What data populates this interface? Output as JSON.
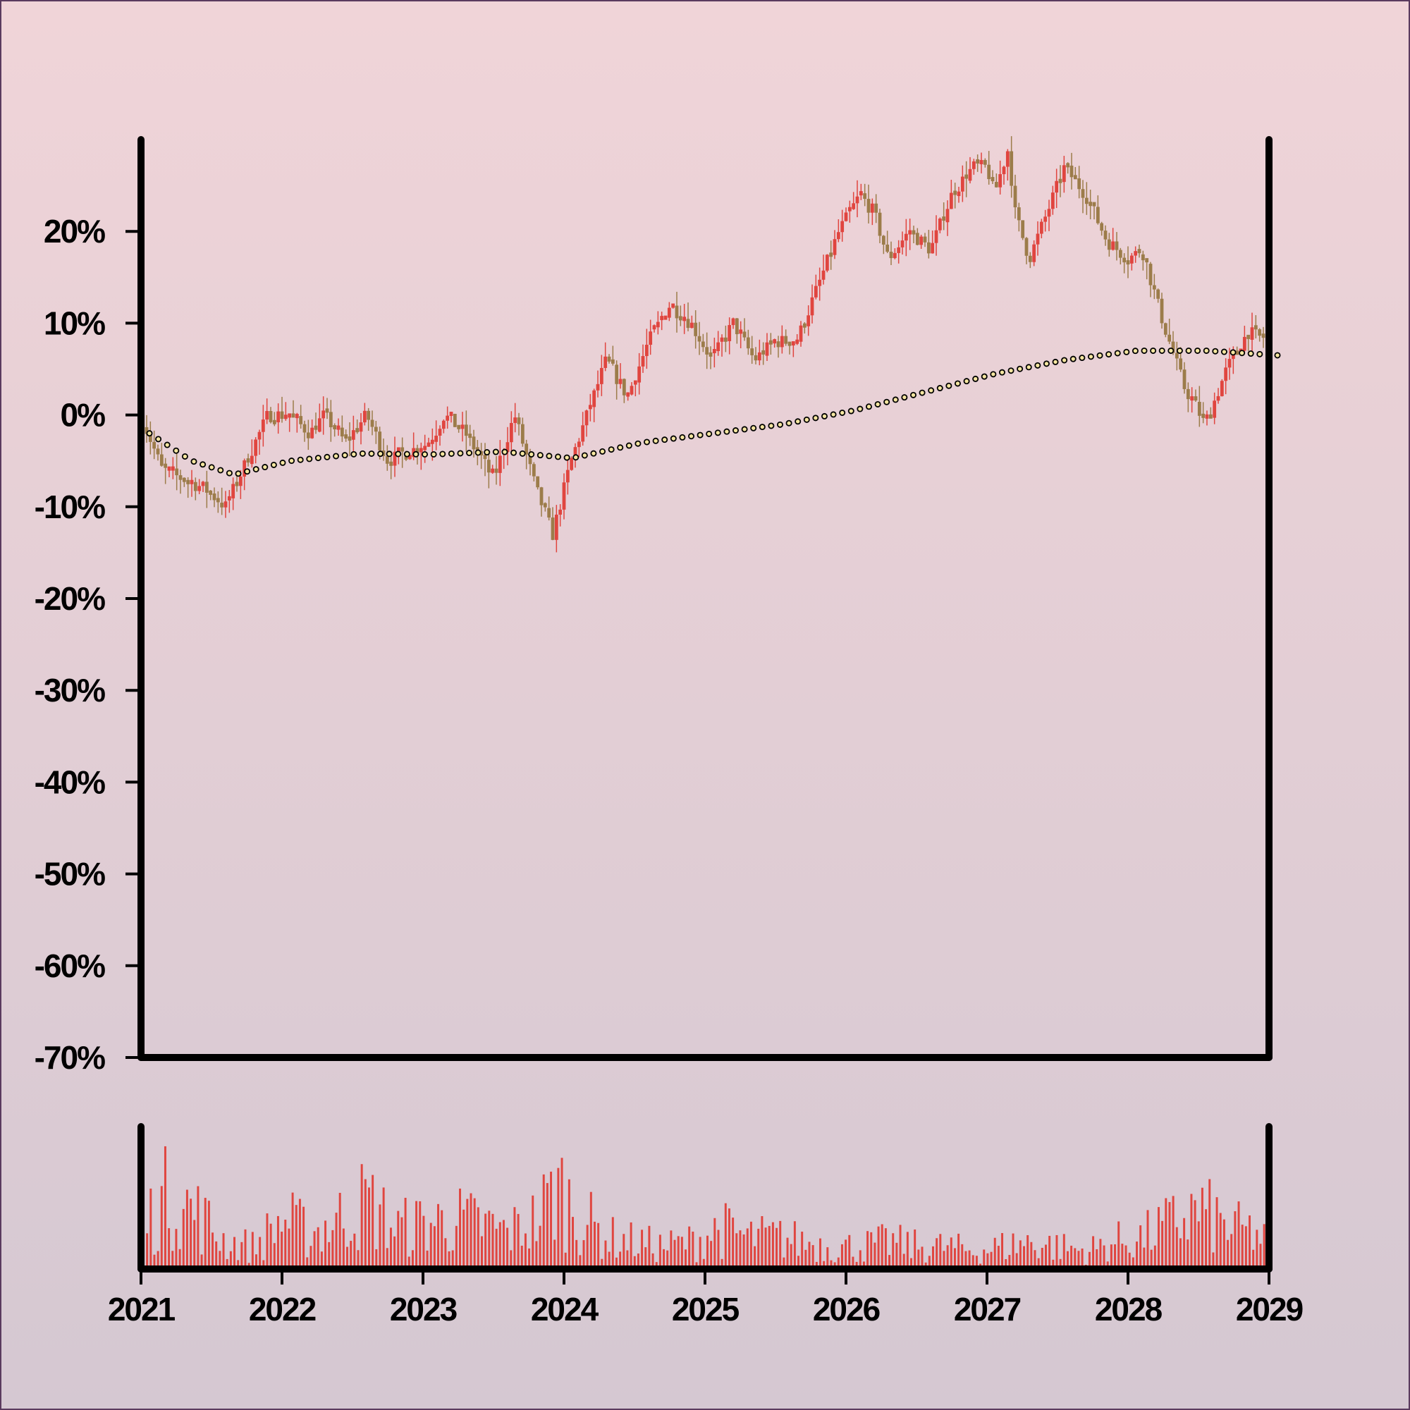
{
  "chart_data": {
    "type": "candlestick",
    "title": "",
    "xlabel": "",
    "ylabel": "",
    "ylim": [
      -70,
      30
    ],
    "xlim": [
      2021,
      2029
    ],
    "y_ticks": [
      20,
      10,
      0,
      -10,
      -20,
      -30,
      -40,
      -50,
      -60,
      -70
    ],
    "y_tick_labels": [
      "20%",
      "10%",
      "0%",
      "-10%",
      "-20%",
      "-30%",
      "-40%",
      "-50%",
      "-60%",
      "-70%"
    ],
    "x_ticks": [
      2021,
      2022,
      2023,
      2024,
      2025,
      2026,
      2027,
      2028,
      2029
    ],
    "x_tick_labels": [
      "2021",
      "2022",
      "2023",
      "2024",
      "2025",
      "2026",
      "2027",
      "2028",
      "2029"
    ],
    "grid": false,
    "colors": {
      "up": "#e0453f",
      "down": "#9c7c4a",
      "average": "#f5e6a0",
      "volume": "#e0453f",
      "axis": "#000000"
    },
    "close_path": [
      [
        2021.0,
        0
      ],
      [
        2021.15,
        -6
      ],
      [
        2021.3,
        -7
      ],
      [
        2021.45,
        -8
      ],
      [
        2021.6,
        -10
      ],
      [
        2021.75,
        -5
      ],
      [
        2021.9,
        0
      ],
      [
        2022.05,
        0
      ],
      [
        2022.2,
        -2
      ],
      [
        2022.3,
        0
      ],
      [
        2022.45,
        -3
      ],
      [
        2022.6,
        0
      ],
      [
        2022.75,
        -5
      ],
      [
        2022.9,
        -4
      ],
      [
        2023.05,
        -3
      ],
      [
        2023.15,
        0
      ],
      [
        2023.3,
        -2
      ],
      [
        2023.5,
        -7
      ],
      [
        2023.65,
        0
      ],
      [
        2023.8,
        -8
      ],
      [
        2023.92,
        -13
      ],
      [
        2024.05,
        -5
      ],
      [
        2024.3,
        6
      ],
      [
        2024.45,
        2
      ],
      [
        2024.6,
        8
      ],
      [
        2024.75,
        12
      ],
      [
        2024.9,
        10
      ],
      [
        2025.05,
        6
      ],
      [
        2025.2,
        10
      ],
      [
        2025.35,
        6
      ],
      [
        2025.5,
        8
      ],
      [
        2025.65,
        8
      ],
      [
        2025.8,
        14
      ],
      [
        2025.95,
        20
      ],
      [
        2026.1,
        24
      ],
      [
        2026.2,
        22
      ],
      [
        2026.3,
        17
      ],
      [
        2026.45,
        20
      ],
      [
        2026.6,
        18
      ],
      [
        2026.75,
        24
      ],
      [
        2026.9,
        27
      ],
      [
        2027.0,
        27
      ],
      [
        2027.05,
        24
      ],
      [
        2027.15,
        29
      ],
      [
        2027.2,
        22
      ],
      [
        2027.3,
        17
      ],
      [
        2027.45,
        23
      ],
      [
        2027.55,
        27
      ],
      [
        2027.7,
        24
      ],
      [
        2027.85,
        19
      ],
      [
        2028.0,
        17
      ],
      [
        2028.1,
        18
      ],
      [
        2028.25,
        10
      ],
      [
        2028.4,
        3
      ],
      [
        2028.55,
        -1
      ],
      [
        2028.7,
        5
      ],
      [
        2028.85,
        9
      ],
      [
        2029.0,
        8
      ]
    ],
    "average_path": [
      [
        2021.0,
        -2
      ],
      [
        2021.3,
        -5
      ],
      [
        2021.6,
        -6.5
      ],
      [
        2022.0,
        -5
      ],
      [
        2022.5,
        -4.2
      ],
      [
        2023.0,
        -4.3
      ],
      [
        2023.5,
        -4
      ],
      [
        2024.0,
        -4.7
      ],
      [
        2024.5,
        -3
      ],
      [
        2025.0,
        -2
      ],
      [
        2025.5,
        -1
      ],
      [
        2026.0,
        0.5
      ],
      [
        2026.5,
        2.5
      ],
      [
        2027.0,
        4.5
      ],
      [
        2027.5,
        6
      ],
      [
        2028.0,
        7
      ],
      [
        2028.5,
        7
      ],
      [
        2029.0,
        6.5
      ]
    ],
    "volume_envelope": [
      [
        2021.0,
        0.45
      ],
      [
        2021.2,
        0.85
      ],
      [
        2021.4,
        0.6
      ],
      [
        2021.6,
        0.3
      ],
      [
        2021.8,
        0.25
      ],
      [
        2022.0,
        0.55
      ],
      [
        2022.2,
        0.4
      ],
      [
        2022.4,
        0.55
      ],
      [
        2022.6,
        0.75
      ],
      [
        2022.8,
        0.45
      ],
      [
        2023.0,
        0.5
      ],
      [
        2023.2,
        0.55
      ],
      [
        2023.4,
        0.5
      ],
      [
        2023.6,
        0.4
      ],
      [
        2023.8,
        0.55
      ],
      [
        2023.95,
        0.9
      ],
      [
        2024.1,
        0.6
      ],
      [
        2024.3,
        0.35
      ],
      [
        2024.5,
        0.3
      ],
      [
        2024.7,
        0.25
      ],
      [
        2024.9,
        0.3
      ],
      [
        2025.1,
        0.45
      ],
      [
        2025.3,
        0.35
      ],
      [
        2025.5,
        0.35
      ],
      [
        2025.7,
        0.3
      ],
      [
        2025.9,
        0.25
      ],
      [
        2026.1,
        0.25
      ],
      [
        2026.3,
        0.3
      ],
      [
        2026.5,
        0.25
      ],
      [
        2026.7,
        0.25
      ],
      [
        2026.9,
        0.2
      ],
      [
        2027.1,
        0.25
      ],
      [
        2027.3,
        0.3
      ],
      [
        2027.5,
        0.25
      ],
      [
        2027.7,
        0.2
      ],
      [
        2027.9,
        0.3
      ],
      [
        2028.1,
        0.35
      ],
      [
        2028.3,
        0.5
      ],
      [
        2028.5,
        0.65
      ],
      [
        2028.7,
        0.45
      ],
      [
        2028.9,
        0.4
      ],
      [
        2029.0,
        0.25
      ]
    ]
  }
}
